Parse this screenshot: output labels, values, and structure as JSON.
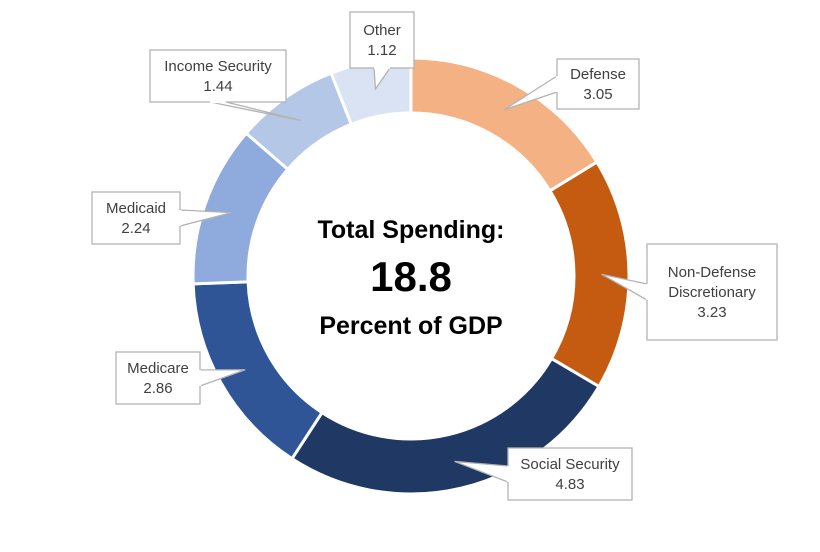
{
  "chart_data": {
    "type": "pie",
    "center": {
      "line1": "Total Spending:",
      "value": "18.8",
      "line3": "Percent of GDP"
    },
    "slices": [
      {
        "label": "Defense",
        "label_lines": [
          "Defense"
        ],
        "value": 3.05,
        "color": "#f4b183"
      },
      {
        "label": "Non-Defense Discretionary",
        "label_lines": [
          "Non-Defense",
          "Discretionary"
        ],
        "value": 3.23,
        "color": "#c55a11"
      },
      {
        "label": "Social Security",
        "label_lines": [
          "Social Security"
        ],
        "value": 4.83,
        "color": "#203864"
      },
      {
        "label": "Medicare",
        "label_lines": [
          "Medicare"
        ],
        "value": 2.86,
        "color": "#2f5597"
      },
      {
        "label": "Medicaid",
        "label_lines": [
          "Medicaid"
        ],
        "value": 2.24,
        "color": "#8faadc"
      },
      {
        "label": "Income Security",
        "label_lines": [
          "Income Security"
        ],
        "value": 1.44,
        "color": "#b4c7e7"
      },
      {
        "label": "Other",
        "label_lines": [
          "Other"
        ],
        "value": 1.12,
        "color": "#dae3f3"
      }
    ]
  }
}
